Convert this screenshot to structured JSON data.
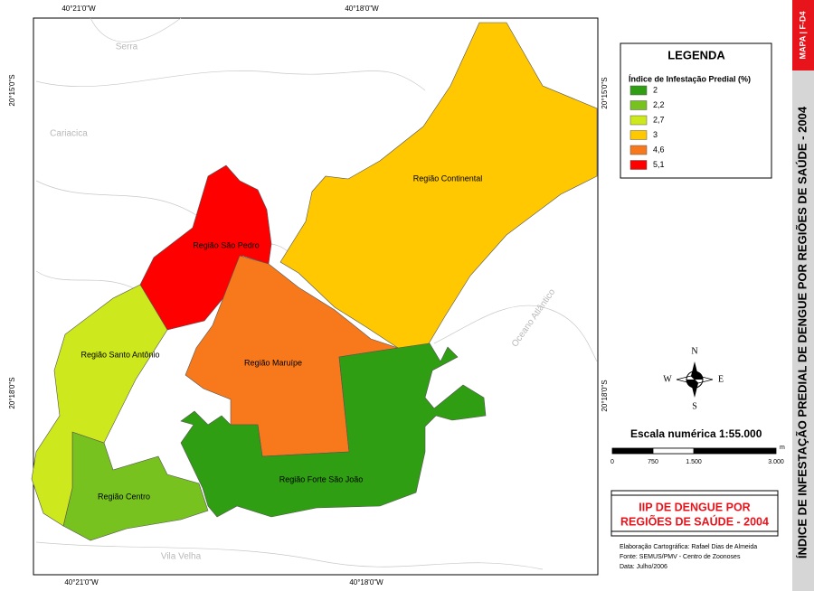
{
  "map": {
    "coords_top": [
      "40°21'0\"W",
      "40°18'0\"W"
    ],
    "coords_bottom": [
      "40°21'0\"W",
      "40°18'0\"W"
    ],
    "coords_left": [
      "20°15'0\"S",
      "20°18'0\"S"
    ],
    "coords_right": [
      "20°15'0\"S",
      "20°18'0\"S"
    ],
    "places": [
      "Serra",
      "Cariacica",
      "Vila Velha",
      "Oceano Atlântico"
    ],
    "regions": [
      {
        "label": "Região Continental",
        "color": "#ffc800"
      },
      {
        "label": "Região São Pedro",
        "color": "#ff0000"
      },
      {
        "label": "Região Maruípe",
        "color": "#f7791c"
      },
      {
        "label": "Região Forte São João",
        "color": "#2f9e12"
      },
      {
        "label": "Região Centro",
        "color": "#77c21f"
      },
      {
        "label": "Região Santo Antônio",
        "color": "#cde81c"
      }
    ]
  },
  "legend": {
    "title": "LEGENDA",
    "subtitle": "Índice de Infestação Predial (%)",
    "items": [
      {
        "label": "2",
        "color": "#2f9e12"
      },
      {
        "label": "2,2",
        "color": "#77c21f"
      },
      {
        "label": "2,7",
        "color": "#cde81c"
      },
      {
        "label": "3",
        "color": "#ffc800"
      },
      {
        "label": "4,6",
        "color": "#f7791c"
      },
      {
        "label": "5,1",
        "color": "#ff0000"
      }
    ]
  },
  "compass": {
    "n": "N",
    "s": "S",
    "e": "E",
    "w": "W"
  },
  "scale": {
    "label": "Escala numérica",
    "ratio": "1:55.000",
    "unit": "m",
    "ticks": [
      "0",
      "750",
      "1.500",
      "3.000"
    ]
  },
  "title_box": {
    "lines": [
      "IIP DE DENGUE POR",
      "REGIÕES DE SAÚDE - 2004"
    ]
  },
  "credits": [
    "Elaboração Cartográfica: Rafael Dias de Almeida",
    "Fonte: SEMUS/PMV - Centro de Zoonoses",
    "Data: Julho/2006"
  ],
  "side": {
    "tag": "MAPA | F-D4",
    "title": "ÍNDICE DE INFESTAÇÃO PREDIAL DE DENGUE POR REGIÕES DE SAÚDE - 2004"
  }
}
